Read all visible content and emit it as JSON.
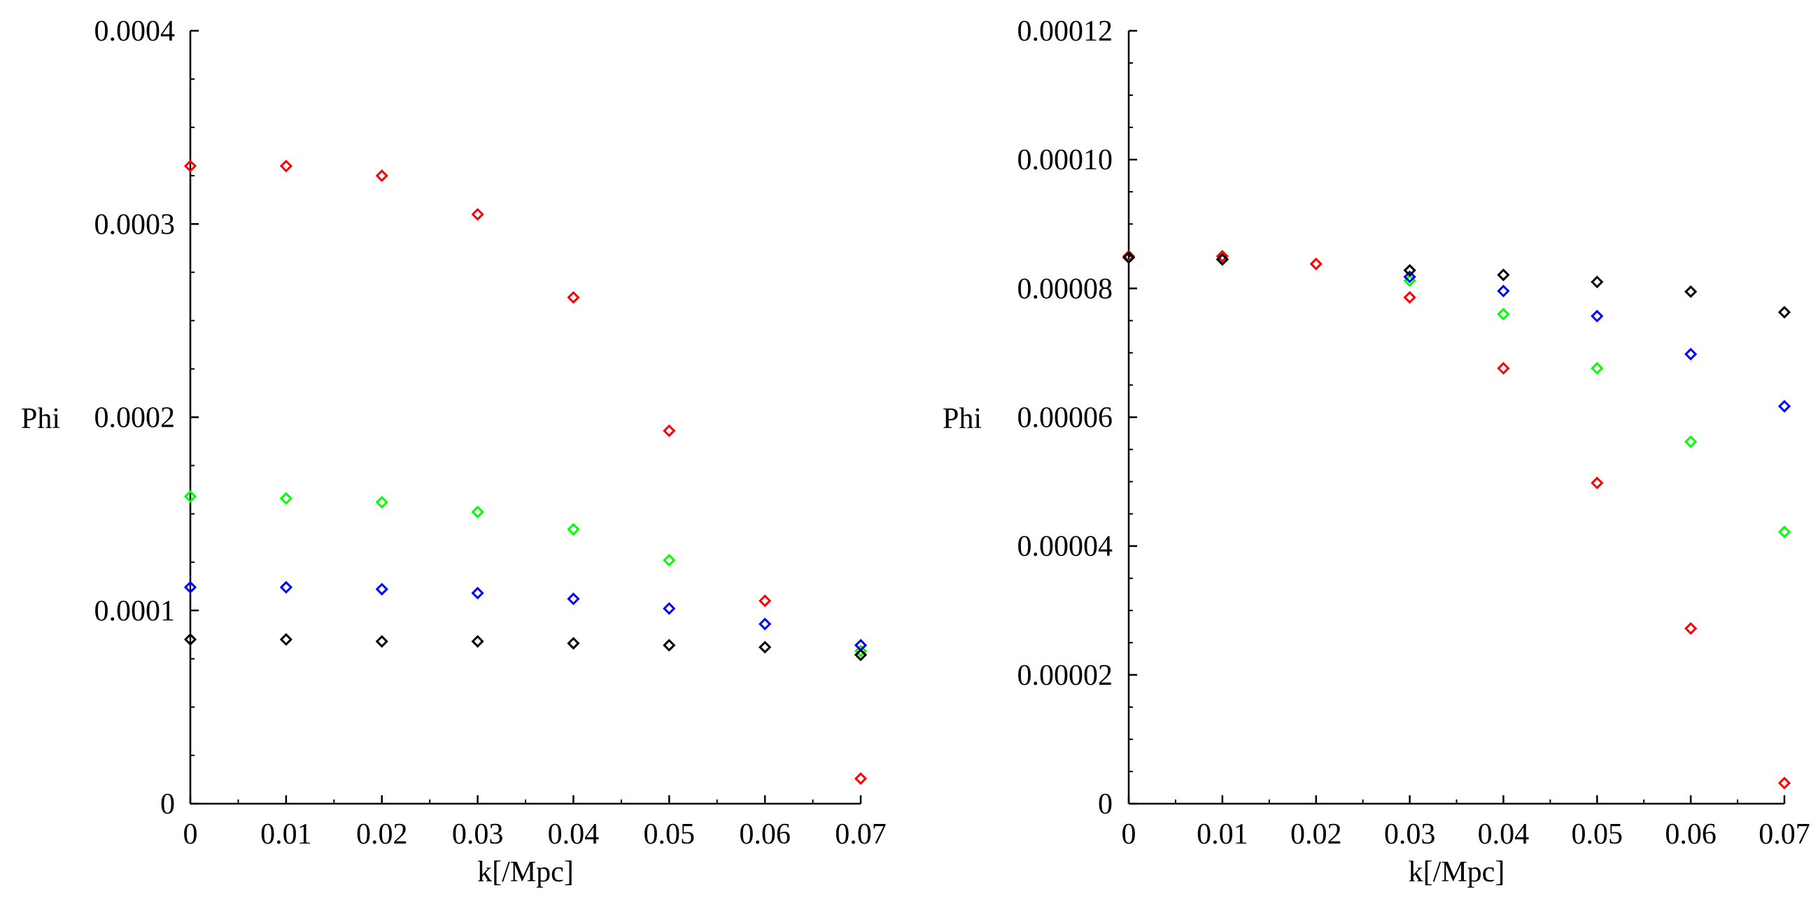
{
  "chart_data": [
    {
      "type": "scatter",
      "xlabel": "k[/Mpc]",
      "ylabel": "Phi",
      "xlim": [
        0,
        0.07
      ],
      "ylim": [
        0,
        0.0004
      ],
      "x_ticks": [
        "0",
        "0.01",
        "0.02",
        "0.03",
        "0.04",
        "0.05",
        "0.06",
        "0.07"
      ],
      "y_ticks": [
        "0",
        "0.0001",
        "0.0002",
        "0.0003",
        "0.0004"
      ],
      "x": [
        0,
        0.01,
        0.02,
        0.03,
        0.04,
        0.05,
        0.06,
        0.07
      ],
      "series": [
        {
          "color": "#ff0000",
          "values": [
            0.00033,
            0.00033,
            0.000325,
            0.000305,
            0.000262,
            0.000193,
            0.000105,
            1.3e-05
          ]
        },
        {
          "color": "#00ff00",
          "values": [
            0.000159,
            0.000158,
            0.000156,
            0.000151,
            0.000142,
            0.000126,
            null,
            7.9e-05
          ]
        },
        {
          "color": "#0000ff",
          "values": [
            0.000112,
            0.000112,
            0.000111,
            0.000109,
            0.000106,
            0.000101,
            9.3e-05,
            8.2e-05
          ]
        },
        {
          "color": "#000000",
          "values": [
            8.5e-05,
            8.5e-05,
            8.4e-05,
            8.4e-05,
            8.3e-05,
            8.2e-05,
            8.1e-05,
            7.7e-05
          ]
        }
      ]
    },
    {
      "type": "scatter",
      "xlabel": "k[/Mpc]",
      "ylabel": "Phi",
      "xlim": [
        0,
        0.07
      ],
      "ylim": [
        0,
        0.00012
      ],
      "x_ticks": [
        "0",
        "0.01",
        "0.02",
        "0.03",
        "0.04",
        "0.05",
        "0.06",
        "0.07"
      ],
      "y_ticks": [
        "0",
        "0.00002",
        "0.00004",
        "0.00006",
        "0.00008",
        "0.00010",
        "0.00012"
      ],
      "x": [
        0,
        0.01,
        0.02,
        0.03,
        0.04,
        0.05,
        0.06,
        0.07
      ],
      "series": [
        {
          "color": "#ff0000",
          "values": [
            8.5e-05,
            8.5e-05,
            8.38e-05,
            7.86e-05,
            6.76e-05,
            4.98e-05,
            2.72e-05,
            3.2e-06
          ]
        },
        {
          "color": "#00ff00",
          "values": [
            8.48e-05,
            8.45e-05,
            null,
            8.12e-05,
            7.6e-05,
            6.76e-05,
            5.62e-05,
            4.22e-05
          ]
        },
        {
          "color": "#0000ff",
          "values": [
            8.48e-05,
            8.45e-05,
            null,
            8.18e-05,
            7.96e-05,
            7.57e-05,
            6.98e-05,
            6.17e-05
          ]
        },
        {
          "color": "#000000",
          "values": [
            8.48e-05,
            8.45e-05,
            null,
            8.28e-05,
            8.21e-05,
            8.1e-05,
            7.95e-05,
            7.63e-05
          ]
        }
      ]
    }
  ]
}
